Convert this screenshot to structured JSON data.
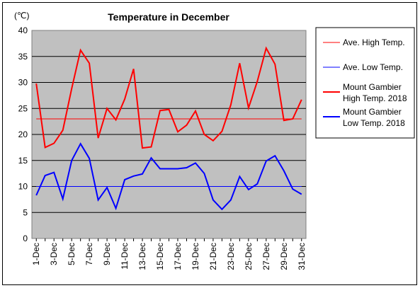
{
  "chart_data": {
    "type": "line",
    "title": "Temperature in December",
    "y_unit": "(℃)",
    "ylim": [
      0,
      40
    ],
    "y_ticks": [
      0,
      5,
      10,
      15,
      20,
      25,
      30,
      35,
      40
    ],
    "x_ticks": [
      "1-Dec",
      "3-Dec",
      "5-Dec",
      "7-Dec",
      "9-Dec",
      "11-Dec",
      "13-Dec",
      "15-Dec",
      "17-Dec",
      "19-Dec",
      "21-Dec",
      "23-Dec",
      "25-Dec",
      "27-Dec",
      "29-Dec",
      "31-Dec"
    ],
    "x": [
      1,
      2,
      3,
      4,
      5,
      6,
      7,
      8,
      9,
      10,
      11,
      12,
      13,
      14,
      15,
      16,
      17,
      18,
      19,
      20,
      21,
      22,
      23,
      24,
      25,
      26,
      27,
      28,
      29,
      30,
      31
    ],
    "grid": "horizontal",
    "legend_position": "right",
    "series": [
      {
        "name": "Ave. High Temp.",
        "color": "#ff0000",
        "width": 1,
        "values": [
          23,
          23,
          23,
          23,
          23,
          23,
          23,
          23,
          23,
          23,
          23,
          23,
          23,
          23,
          23,
          23,
          23,
          23,
          23,
          23,
          23,
          23,
          23,
          23,
          23,
          23,
          23,
          23,
          23,
          23,
          23
        ]
      },
      {
        "name": "Ave. Low Temp.",
        "color": "#0000ff",
        "width": 1,
        "values": [
          10,
          10,
          10,
          10,
          10,
          10,
          10,
          10,
          10,
          10,
          10,
          10,
          10,
          10,
          10,
          10,
          10,
          10,
          10,
          10,
          10,
          10,
          10,
          10,
          10,
          10,
          10,
          10,
          10,
          10,
          10
        ]
      },
      {
        "name": "Mount Gambier High Temp. 2018",
        "color": "#ff0000",
        "width": 2,
        "values": [
          29.8,
          17.5,
          18.3,
          20.8,
          28.8,
          36.2,
          33.7,
          19.3,
          25,
          22.8,
          26.8,
          32.6,
          17.4,
          17.6,
          24.6,
          24.8,
          20.5,
          21.8,
          24.5,
          20,
          18.8,
          20.6,
          25.7,
          33.7,
          25.1,
          30.2,
          36.6,
          33.5,
          22.7,
          23,
          26.7
        ]
      },
      {
        "name": "Mount Gambier Low Temp. 2018",
        "color": "#0000ff",
        "width": 2,
        "values": [
          8.3,
          12.1,
          12.7,
          7.6,
          15,
          18.2,
          15.4,
          7.4,
          9.8,
          5.8,
          11.3,
          12,
          12.4,
          15.5,
          13.4,
          13.4,
          13.4,
          13.6,
          14.5,
          12.5,
          7.4,
          5.6,
          7.4,
          11.9,
          9.4,
          10.5,
          14.9,
          15.9,
          13,
          9.5,
          8.5
        ]
      }
    ],
    "legend_labels": [
      {
        "lines": [
          "Ave. High Temp."
        ]
      },
      {
        "lines": [
          "Ave. Low Temp."
        ]
      },
      {
        "lines": [
          "Mount Gambier",
          "High Temp. 2018"
        ]
      },
      {
        "lines": [
          "Mount Gambier",
          "Low Temp. 2018"
        ]
      }
    ]
  }
}
